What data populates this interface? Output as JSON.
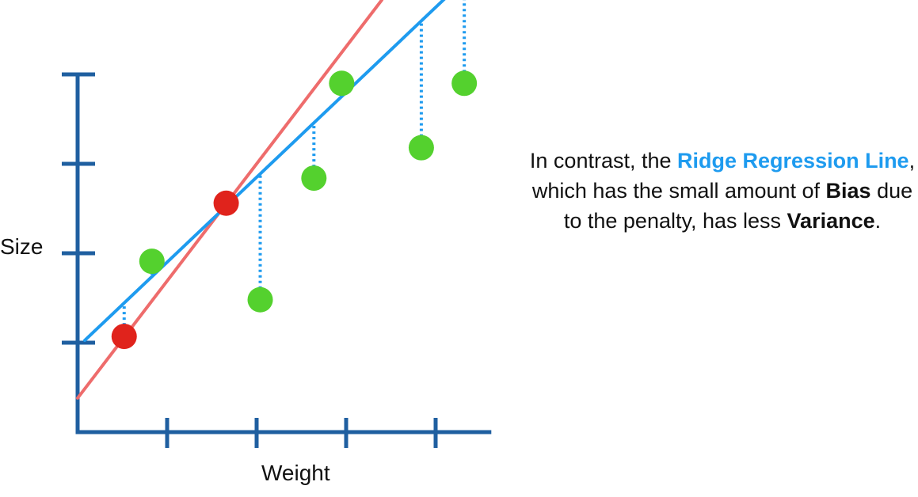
{
  "chart_data": {
    "type": "scatter",
    "xlabel": "Weight",
    "ylabel": "Size",
    "x_ticks": 4,
    "y_ticks": 4,
    "xlim": [
      0,
      5
    ],
    "ylim": [
      0,
      5
    ],
    "grid": false,
    "colors": {
      "axis": "#1f5fa0",
      "training_points": "#e0231c",
      "testing_points": "#54d12e",
      "least_squares_line": "#ee6c6c",
      "ridge_line": "#1e9bef",
      "residuals": "#1e9bef"
    },
    "series": [
      {
        "role": "training",
        "points": [
          {
            "x": 0.52,
            "y": 1.07
          },
          {
            "x": 1.66,
            "y": 2.56
          }
        ]
      },
      {
        "role": "testing",
        "points": [
          {
            "x": 0.83,
            "y": 1.91
          },
          {
            "x": 2.04,
            "y": 1.48
          },
          {
            "x": 2.64,
            "y": 2.84
          },
          {
            "x": 2.95,
            "y": 3.9
          },
          {
            "x": 3.84,
            "y": 3.18
          },
          {
            "x": 4.32,
            "y": 3.9
          }
        ]
      }
    ],
    "lines": [
      {
        "role": "least-squares",
        "intercept": 0.38,
        "slope": 1.31
      },
      {
        "role": "ridge",
        "intercept": 0.95,
        "slope": 0.95
      }
    ]
  },
  "caption": {
    "p1": "In contrast, the ",
    "ridge": "Ridge Regression Line",
    "p2": ", which has the small amount of ",
    "bias": "Bias",
    "p3": " due to the penalty, has less ",
    "variance": "Variance",
    "p4": "."
  }
}
